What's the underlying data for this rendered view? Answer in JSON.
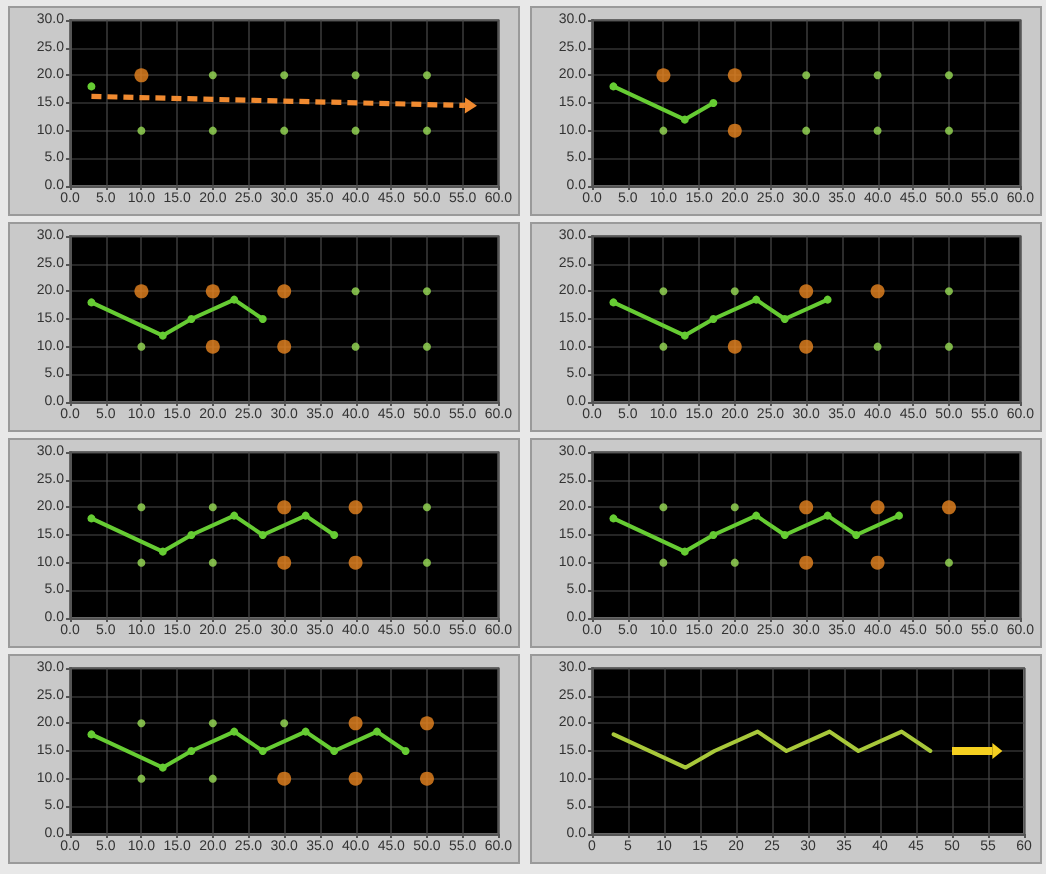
{
  "chart_data": [
    {
      "type": "line",
      "xlim": [
        0,
        60
      ],
      "ylim": [
        0,
        30
      ],
      "grid": true,
      "marker": "circle",
      "xticks": [
        {
          "value": 0,
          "label": "0.0"
        },
        {
          "value": 5,
          "label": "5.0"
        },
        {
          "value": 10,
          "label": "10.0"
        },
        {
          "value": 15,
          "label": "15.0"
        },
        {
          "value": 20,
          "label": "20.0"
        },
        {
          "value": 25,
          "label": "25.0"
        },
        {
          "value": 30,
          "label": "30.0"
        },
        {
          "value": 35,
          "label": "35.0"
        },
        {
          "value": 40,
          "label": "40.0"
        },
        {
          "value": 45,
          "label": "45.0"
        },
        {
          "value": 50,
          "label": "50.0"
        },
        {
          "value": 55,
          "label": "55.0"
        },
        {
          "value": 60,
          "label": "60.0"
        }
      ],
      "yticks": [
        {
          "value": 0,
          "label": "0.0"
        },
        {
          "value": 5,
          "label": "5.0"
        },
        {
          "value": 10,
          "label": "10.0"
        },
        {
          "value": 15,
          "label": "15.0"
        },
        {
          "value": 20,
          "label": "20.0"
        },
        {
          "value": 25,
          "label": "25.0"
        },
        {
          "value": 30,
          "label": "30.0"
        }
      ],
      "series": [
        {
          "color": "#66cc33",
          "x": [
            3
          ],
          "values": [
            18
          ]
        },
        {
          "type": "scatter",
          "color": "#e8841f",
          "x": [
            10
          ],
          "values": [
            20
          ]
        },
        {
          "type": "scatter",
          "color": "#99dd55",
          "x": [
            10,
            20,
            20,
            30,
            30,
            40,
            40,
            50,
            50
          ],
          "values": [
            10,
            20,
            10,
            20,
            10,
            20,
            10,
            20,
            10
          ]
        }
      ]
    },
    {
      "type": "line",
      "xlim": [
        0,
        60
      ],
      "ylim": [
        0,
        30
      ],
      "grid": true,
      "marker": "circle",
      "xticks": [
        {
          "value": 0,
          "label": "0.0"
        },
        {
          "value": 5,
          "label": "5.0"
        },
        {
          "value": 10,
          "label": "10.0"
        },
        {
          "value": 15,
          "label": "15.0"
        },
        {
          "value": 20,
          "label": "20.0"
        },
        {
          "value": 25,
          "label": "25.0"
        },
        {
          "value": 30,
          "label": "30.0"
        },
        {
          "value": 35,
          "label": "35.0"
        },
        {
          "value": 40,
          "label": "40.0"
        },
        {
          "value": 45,
          "label": "45.0"
        },
        {
          "value": 50,
          "label": "50.0"
        },
        {
          "value": 55,
          "label": "55.0"
        },
        {
          "value": 60,
          "label": "60.0"
        }
      ],
      "yticks": [
        {
          "value": 0,
          "label": "0.0"
        },
        {
          "value": 5,
          "label": "5.0"
        },
        {
          "value": 10,
          "label": "10.0"
        },
        {
          "value": 15,
          "label": "15.0"
        },
        {
          "value": 20,
          "label": "20.0"
        },
        {
          "value": 25,
          "label": "25.0"
        },
        {
          "value": 30,
          "label": "30.0"
        }
      ],
      "series": [
        {
          "color": "#66cc33",
          "x": [
            3,
            13,
            17
          ],
          "values": [
            18,
            12,
            15
          ]
        },
        {
          "type": "scatter",
          "color": "#e8841f",
          "x": [
            10,
            20,
            20
          ],
          "values": [
            20,
            20,
            10
          ]
        },
        {
          "type": "scatter",
          "color": "#99dd55",
          "x": [
            10,
            30,
            30,
            40,
            40,
            50,
            50
          ],
          "values": [
            10,
            20,
            10,
            20,
            10,
            20,
            10
          ]
        }
      ]
    },
    {
      "type": "line",
      "xlim": [
        0,
        60
      ],
      "ylim": [
        0,
        30
      ],
      "grid": true,
      "marker": "circle",
      "xticks": [
        {
          "value": 0,
          "label": "0.0"
        },
        {
          "value": 5,
          "label": "5.0"
        },
        {
          "value": 10,
          "label": "10.0"
        },
        {
          "value": 15,
          "label": "15.0"
        },
        {
          "value": 20,
          "label": "20.0"
        },
        {
          "value": 25,
          "label": "25.0"
        },
        {
          "value": 30,
          "label": "30.0"
        },
        {
          "value": 35,
          "label": "35.0"
        },
        {
          "value": 40,
          "label": "40.0"
        },
        {
          "value": 45,
          "label": "45.0"
        },
        {
          "value": 50,
          "label": "50.0"
        },
        {
          "value": 55,
          "label": "55.0"
        },
        {
          "value": 60,
          "label": "60.0"
        }
      ],
      "yticks": [
        {
          "value": 0,
          "label": "0.0"
        },
        {
          "value": 5,
          "label": "5.0"
        },
        {
          "value": 10,
          "label": "10.0"
        },
        {
          "value": 15,
          "label": "15.0"
        },
        {
          "value": 20,
          "label": "20.0"
        },
        {
          "value": 25,
          "label": "25.0"
        },
        {
          "value": 30,
          "label": "30.0"
        }
      ],
      "series": [
        {
          "color": "#66cc33",
          "x": [
            3,
            13,
            17,
            23,
            27
          ],
          "values": [
            18,
            12,
            15,
            18.5,
            15
          ]
        },
        {
          "type": "scatter",
          "color": "#e8841f",
          "x": [
            10,
            20,
            20,
            30,
            30
          ],
          "values": [
            20,
            20,
            10,
            20,
            10
          ]
        },
        {
          "type": "scatter",
          "color": "#99dd55",
          "x": [
            10,
            40,
            40,
            50,
            50
          ],
          "values": [
            10,
            20,
            10,
            20,
            10
          ]
        }
      ]
    },
    {
      "type": "line",
      "xlim": [
        0,
        60
      ],
      "ylim": [
        0,
        30
      ],
      "grid": true,
      "marker": "circle",
      "xticks": [
        {
          "value": 0,
          "label": "0.0"
        },
        {
          "value": 5,
          "label": "5.0"
        },
        {
          "value": 10,
          "label": "10.0"
        },
        {
          "value": 15,
          "label": "15.0"
        },
        {
          "value": 20,
          "label": "20.0"
        },
        {
          "value": 25,
          "label": "25.0"
        },
        {
          "value": 30,
          "label": "30.0"
        },
        {
          "value": 35,
          "label": "35.0"
        },
        {
          "value": 40,
          "label": "40.0"
        },
        {
          "value": 45,
          "label": "45.0"
        },
        {
          "value": 50,
          "label": "50.0"
        },
        {
          "value": 55,
          "label": "55.0"
        },
        {
          "value": 60,
          "label": "60.0"
        }
      ],
      "yticks": [
        {
          "value": 0,
          "label": "0.0"
        },
        {
          "value": 5,
          "label": "5.0"
        },
        {
          "value": 10,
          "label": "10.0"
        },
        {
          "value": 15,
          "label": "15.0"
        },
        {
          "value": 20,
          "label": "20.0"
        },
        {
          "value": 25,
          "label": "25.0"
        },
        {
          "value": 30,
          "label": "30.0"
        }
      ],
      "series": [
        {
          "color": "#66cc33",
          "x": [
            3,
            13,
            17,
            23,
            27,
            33
          ],
          "values": [
            18,
            12,
            15,
            18.5,
            15,
            18.5
          ]
        },
        {
          "type": "scatter",
          "color": "#e8841f",
          "x": [
            20,
            30,
            30,
            40
          ],
          "values": [
            10,
            20,
            10,
            20
          ]
        },
        {
          "type": "scatter",
          "color": "#99dd55",
          "x": [
            10,
            10,
            20,
            40,
            50,
            50
          ],
          "values": [
            20,
            10,
            20,
            10,
            20,
            10
          ]
        }
      ]
    },
    {
      "type": "line",
      "xlim": [
        0,
        60
      ],
      "ylim": [
        0,
        30
      ],
      "grid": true,
      "marker": "circle",
      "xticks": [
        {
          "value": 0,
          "label": "0.0"
        },
        {
          "value": 5,
          "label": "5.0"
        },
        {
          "value": 10,
          "label": "10.0"
        },
        {
          "value": 15,
          "label": "15.0"
        },
        {
          "value": 20,
          "label": "20.0"
        },
        {
          "value": 25,
          "label": "25.0"
        },
        {
          "value": 30,
          "label": "30.0"
        },
        {
          "value": 35,
          "label": "35.0"
        },
        {
          "value": 40,
          "label": "40.0"
        },
        {
          "value": 45,
          "label": "45.0"
        },
        {
          "value": 50,
          "label": "50.0"
        },
        {
          "value": 55,
          "label": "55.0"
        },
        {
          "value": 60,
          "label": "60.0"
        }
      ],
      "yticks": [
        {
          "value": 0,
          "label": "0.0"
        },
        {
          "value": 5,
          "label": "5.0"
        },
        {
          "value": 10,
          "label": "10.0"
        },
        {
          "value": 15,
          "label": "15.0"
        },
        {
          "value": 20,
          "label": "20.0"
        },
        {
          "value": 25,
          "label": "25.0"
        },
        {
          "value": 30,
          "label": "30.0"
        }
      ],
      "series": [
        {
          "color": "#66cc33",
          "x": [
            3,
            13,
            17,
            23,
            27,
            33,
            37
          ],
          "values": [
            18,
            12,
            15,
            18.5,
            15,
            18.5,
            15
          ]
        },
        {
          "type": "scatter",
          "color": "#e8841f",
          "x": [
            30,
            30,
            40,
            40
          ],
          "values": [
            20,
            10,
            20,
            10
          ]
        },
        {
          "type": "scatter",
          "color": "#99dd55",
          "x": [
            10,
            10,
            20,
            20,
            50,
            50
          ],
          "values": [
            20,
            10,
            20,
            10,
            20,
            10
          ]
        }
      ]
    },
    {
      "type": "line",
      "xlim": [
        0,
        60
      ],
      "ylim": [
        0,
        30
      ],
      "grid": true,
      "marker": "circle",
      "xticks": [
        {
          "value": 0,
          "label": "0.0"
        },
        {
          "value": 5,
          "label": "5.0"
        },
        {
          "value": 10,
          "label": "10.0"
        },
        {
          "value": 15,
          "label": "15.0"
        },
        {
          "value": 20,
          "label": "20.0"
        },
        {
          "value": 25,
          "label": "25.0"
        },
        {
          "value": 30,
          "label": "30.0"
        },
        {
          "value": 35,
          "label": "35.0"
        },
        {
          "value": 40,
          "label": "40.0"
        },
        {
          "value": 45,
          "label": "45.0"
        },
        {
          "value": 50,
          "label": "50.0"
        },
        {
          "value": 55,
          "label": "55.0"
        },
        {
          "value": 60,
          "label": "60.0"
        }
      ],
      "yticks": [
        {
          "value": 0,
          "label": "0.0"
        },
        {
          "value": 5,
          "label": "5.0"
        },
        {
          "value": 10,
          "label": "10.0"
        },
        {
          "value": 15,
          "label": "15.0"
        },
        {
          "value": 20,
          "label": "20.0"
        },
        {
          "value": 25,
          "label": "25.0"
        },
        {
          "value": 30,
          "label": "30.0"
        }
      ],
      "series": [
        {
          "color": "#66cc33",
          "x": [
            3,
            13,
            17,
            23,
            27,
            33,
            37,
            43
          ],
          "values": [
            18,
            12,
            15,
            18.5,
            15,
            18.5,
            15,
            18.5
          ]
        },
        {
          "type": "scatter",
          "color": "#e8841f",
          "x": [
            30,
            30,
            40,
            40,
            50
          ],
          "values": [
            20,
            10,
            20,
            10,
            20
          ]
        },
        {
          "type": "scatter",
          "color": "#99dd55",
          "x": [
            10,
            10,
            20,
            20,
            50
          ],
          "values": [
            20,
            10,
            20,
            10,
            10
          ]
        }
      ]
    },
    {
      "type": "line",
      "xlim": [
        0,
        60
      ],
      "ylim": [
        0,
        30
      ],
      "grid": true,
      "marker": "circle",
      "xticks": [
        {
          "value": 0,
          "label": "0.0"
        },
        {
          "value": 5,
          "label": "5.0"
        },
        {
          "value": 10,
          "label": "10.0"
        },
        {
          "value": 15,
          "label": "15.0"
        },
        {
          "value": 20,
          "label": "20.0"
        },
        {
          "value": 25,
          "label": "25.0"
        },
        {
          "value": 30,
          "label": "30.0"
        },
        {
          "value": 35,
          "label": "35.0"
        },
        {
          "value": 40,
          "label": "40.0"
        },
        {
          "value": 45,
          "label": "45.0"
        },
        {
          "value": 50,
          "label": "50.0"
        },
        {
          "value": 55,
          "label": "55.0"
        },
        {
          "value": 60,
          "label": "60.0"
        }
      ],
      "yticks": [
        {
          "value": 0,
          "label": "0.0"
        },
        {
          "value": 5,
          "label": "5.0"
        },
        {
          "value": 10,
          "label": "10.0"
        },
        {
          "value": 15,
          "label": "15.0"
        },
        {
          "value": 20,
          "label": "20.0"
        },
        {
          "value": 25,
          "label": "25.0"
        },
        {
          "value": 30,
          "label": "30.0"
        }
      ],
      "series": [
        {
          "color": "#66cc33",
          "x": [
            3,
            13,
            17,
            23,
            27,
            33,
            37,
            43,
            47
          ],
          "values": [
            18,
            12,
            15,
            18.5,
            15,
            18.5,
            15,
            18.5,
            15
          ]
        },
        {
          "type": "scatter",
          "color": "#e8841f",
          "x": [
            30,
            40,
            40,
            50,
            50
          ],
          "values": [
            10,
            20,
            10,
            20,
            10
          ]
        },
        {
          "type": "scatter",
          "color": "#99dd55",
          "x": [
            10,
            10,
            20,
            20,
            30
          ],
          "values": [
            20,
            10,
            20,
            10,
            20
          ]
        }
      ]
    },
    {
      "type": "line",
      "xlim": [
        0,
        60
      ],
      "ylim": [
        0,
        30
      ],
      "grid": true,
      "marker": "none",
      "xticks": [
        0,
        5,
        10,
        15,
        20,
        25,
        30,
        35,
        40,
        45,
        50,
        55,
        60
      ],
      "yticks": [
        {
          "value": 0,
          "label": "0.0"
        },
        {
          "value": 5,
          "label": "5.0"
        },
        {
          "value": 10,
          "label": "10.0"
        },
        {
          "value": 15,
          "label": "15.0"
        },
        {
          "value": 20,
          "label": "20.0"
        },
        {
          "value": 25,
          "label": "25.0"
        },
        {
          "value": 30,
          "label": "30.0"
        }
      ],
      "series": [
        {
          "color": "#a8c83a",
          "x": [
            3,
            13,
            17,
            23,
            27,
            33,
            37,
            43,
            47
          ],
          "values": [
            18,
            12,
            15,
            18.5,
            15,
            18.5,
            15,
            18.5,
            15
          ]
        }
      ]
    }
  ]
}
